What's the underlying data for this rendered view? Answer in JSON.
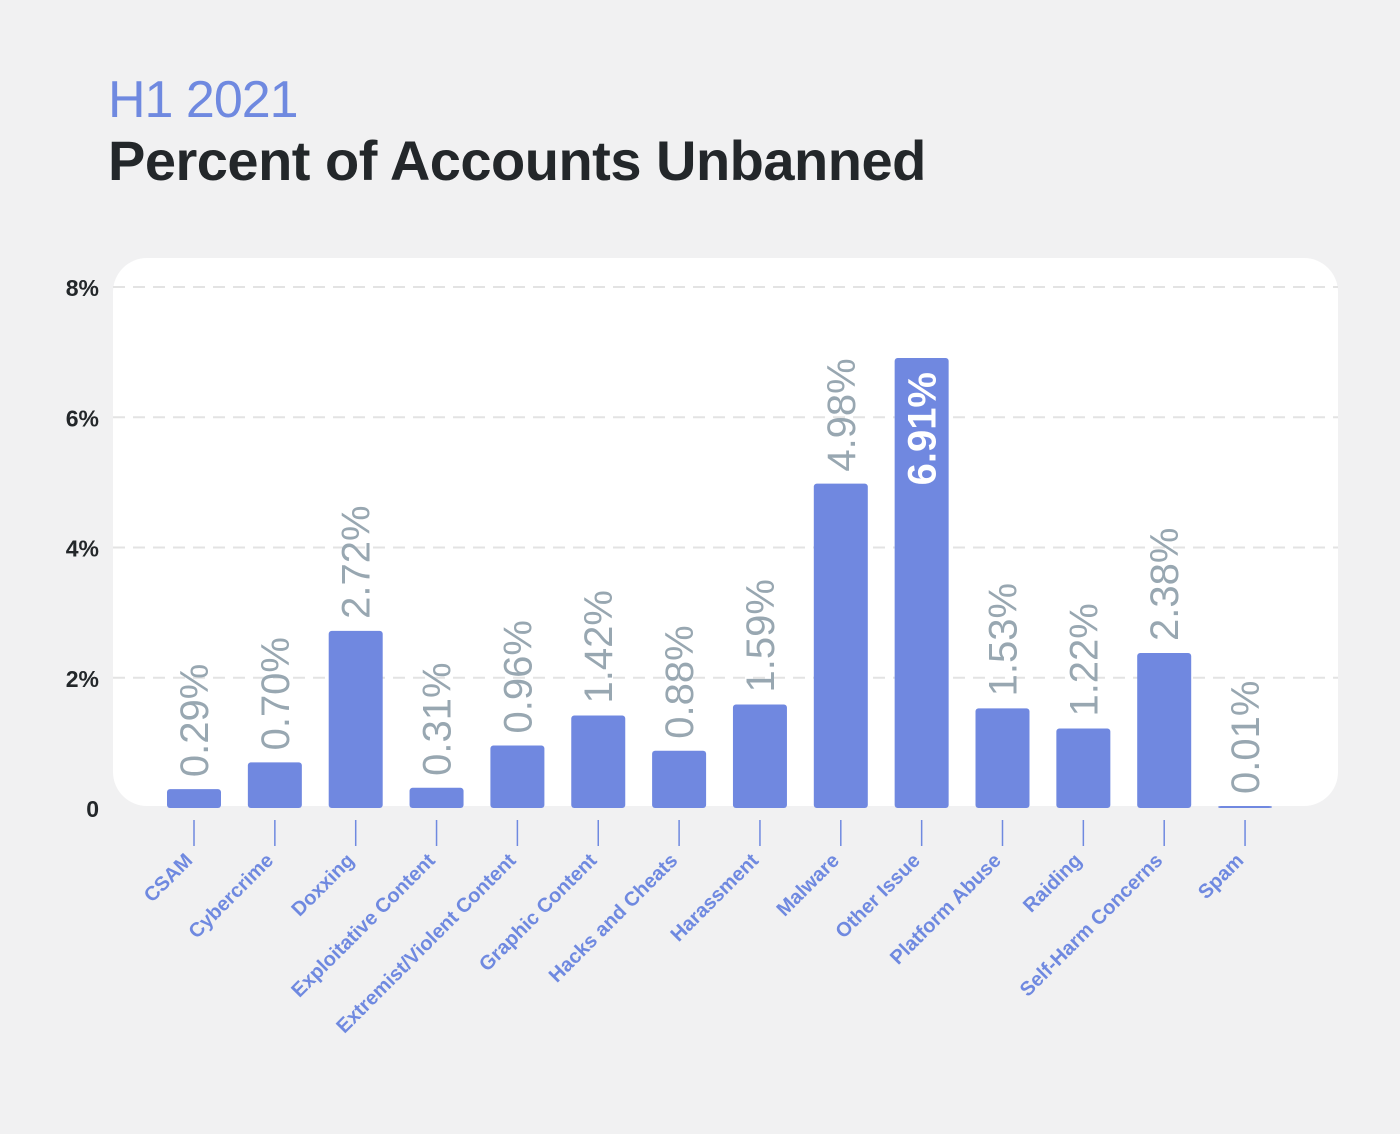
{
  "subtitle": "H1 2021",
  "title": "Percent of Accounts Unbanned",
  "colors": {
    "bar": "#7088e0",
    "value_label": "#98a7b1",
    "value_label_inside": "#ffffff",
    "category_label": "#6f89e0",
    "axis_tick": "#23272a",
    "grid": "#e3e3e3",
    "page_background": "#f1f1f2",
    "panel_background": "#ffffff"
  },
  "chart_data": {
    "type": "bar",
    "title": "Percent of Accounts Unbanned",
    "subtitle": "H1 2021",
    "xlabel": "",
    "ylabel": "",
    "ylim": [
      0,
      8
    ],
    "yticks": [
      0,
      2,
      4,
      6,
      8
    ],
    "ytick_labels": [
      "0",
      "2%",
      "4%",
      "6%",
      "8%"
    ],
    "grid": true,
    "categories": [
      "CSAM",
      "Cybercrime",
      "Doxxing",
      "Exploitative Content",
      "Extremist/Violent Content",
      "Graphic Content",
      "Hacks and Cheats",
      "Harassment",
      "Malware",
      "Other Issue",
      "Platform Abuse",
      "Raiding",
      "Self-Harm Concerns",
      "Spam"
    ],
    "values": [
      0.29,
      0.7,
      2.72,
      0.31,
      0.96,
      1.42,
      0.88,
      1.59,
      4.98,
      6.91,
      1.53,
      1.22,
      2.38,
      0.01
    ],
    "data_labels": [
      "0.29%",
      "0.70%",
      "2.72%",
      "0.31%",
      "0.96%",
      "1.42%",
      "0.88%",
      "1.59%",
      "4.98%",
      "6.91%",
      "1.53%",
      "1.22%",
      "2.38%",
      "0.01%"
    ],
    "label_inside_bar": [
      false,
      false,
      false,
      false,
      false,
      false,
      false,
      false,
      false,
      true,
      false,
      false,
      false,
      false
    ]
  }
}
